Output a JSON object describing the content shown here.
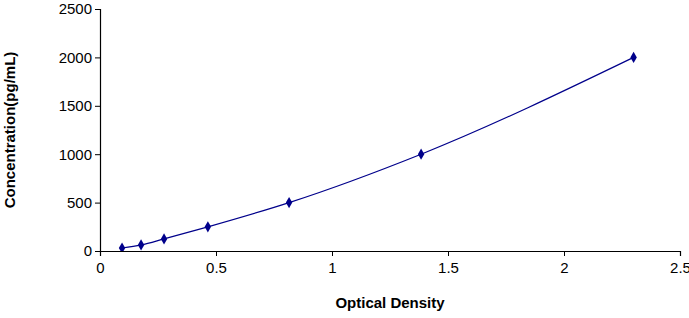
{
  "chart_data": {
    "type": "line",
    "x_label": "Optical Density",
    "y_label": "Concentration(pg/mL)",
    "x": [
      0.095,
      0.177,
      0.276,
      0.465,
      0.815,
      1.384,
      2.3
    ],
    "values": [
      31.25,
      62.5,
      125,
      250,
      500,
      1000,
      2000
    ],
    "color": "#00008b",
    "marker": "diamond",
    "xlim": [
      0,
      2.5
    ],
    "xticks": [
      0,
      0.5,
      1,
      1.5,
      2,
      2.5
    ],
    "ylim": [
      0,
      2500
    ],
    "yticks": [
      0,
      500,
      1000,
      1500,
      2000,
      2500
    ],
    "grid": false
  }
}
